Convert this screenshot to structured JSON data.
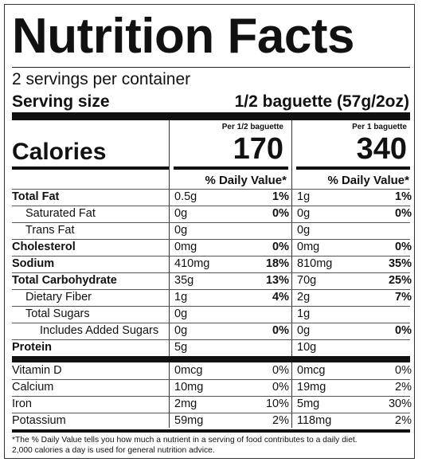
{
  "title": "Nutrition Facts",
  "servings_per_container": "2 servings per container",
  "serving_size_label": "Serving size",
  "serving_size_value": "1/2 baguette (57g/2oz)",
  "columns": [
    {
      "header": "Per 1/2 baguette",
      "calories": "170",
      "dv_header": "% Daily Value*"
    },
    {
      "header": "Per 1 baguette",
      "calories": "340",
      "dv_header": "% Daily Value*"
    }
  ],
  "calories_label": "Calories",
  "nutrients": [
    {
      "name": "Total Fat",
      "c1_amount": "0.5g",
      "c1_dv": "1%",
      "c2_amount": "1g",
      "c2_dv": "1%"
    },
    {
      "name": "Saturated Fat",
      "c1_amount": "0g",
      "c1_dv": "0%",
      "c2_amount": "0g",
      "c2_dv": "0%"
    },
    {
      "name": "Trans Fat",
      "c1_amount": "0g",
      "c1_dv": "",
      "c2_amount": "0g",
      "c2_dv": ""
    },
    {
      "name": "Cholesterol",
      "c1_amount": "0mg",
      "c1_dv": "0%",
      "c2_amount": "0mg",
      "c2_dv": "0%"
    },
    {
      "name": "Sodium",
      "c1_amount": "410mg",
      "c1_dv": "18%",
      "c2_amount": "810mg",
      "c2_dv": "35%"
    },
    {
      "name": "Total Carbohydrate",
      "c1_amount": "35g",
      "c1_dv": "13%",
      "c2_amount": "70g",
      "c2_dv": "25%"
    },
    {
      "name": "Dietary Fiber",
      "c1_amount": "1g",
      "c1_dv": "4%",
      "c2_amount": "2g",
      "c2_dv": "7%"
    },
    {
      "name": "Total Sugars",
      "c1_amount": "0g",
      "c1_dv": "",
      "c2_amount": "1g",
      "c2_dv": ""
    },
    {
      "name": "Includes Added Sugars",
      "c1_amount": "0g",
      "c1_dv": "0%",
      "c2_amount": "0g",
      "c2_dv": "0%"
    },
    {
      "name": "Protein",
      "c1_amount": "5g",
      "c1_dv": "",
      "c2_amount": "10g",
      "c2_dv": ""
    }
  ],
  "vitamins": [
    {
      "name": "Vitamin D",
      "c1_amount": "0mcg",
      "c1_dv": "0%",
      "c2_amount": "0mcg",
      "c2_dv": "0%"
    },
    {
      "name": "Calcium",
      "c1_amount": "10mg",
      "c1_dv": "0%",
      "c2_amount": "19mg",
      "c2_dv": "2%"
    },
    {
      "name": "Iron",
      "c1_amount": "2mg",
      "c1_dv": "10%",
      "c2_amount": "5mg",
      "c2_dv": "30%"
    },
    {
      "name": "Potassium",
      "c1_amount": "59mg",
      "c1_dv": "2%",
      "c2_amount": "118mg",
      "c2_dv": "2%"
    }
  ],
  "footnote_line1": "*The % Daily Value tells you how much a nutrient in a serving of food contributes to a daily diet.",
  "footnote_line2": "2,000 calories a day is used for general nutrition advice."
}
